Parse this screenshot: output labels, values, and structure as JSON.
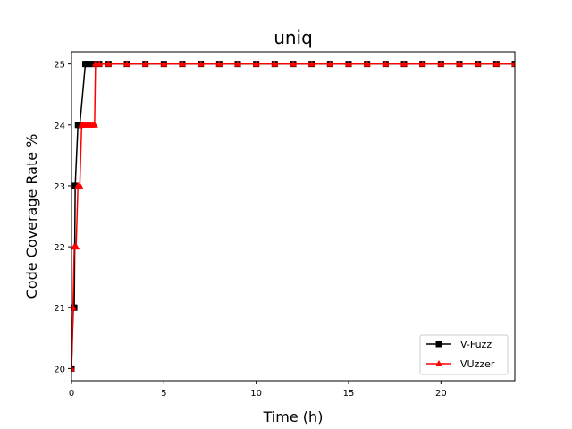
{
  "chart_data": {
    "type": "line",
    "title": "uniq",
    "xlabel": "Time (h)",
    "ylabel": "Code Coverage Rate %",
    "xlim": [
      0,
      24
    ],
    "ylim": [
      19.8,
      25.2
    ],
    "xticks": [
      0,
      5,
      10,
      15,
      20
    ],
    "yticks": [
      20,
      21,
      22,
      23,
      24,
      25
    ],
    "grid": false,
    "legend_position": "lower-right",
    "series": [
      {
        "name": "V-Fuzz",
        "color": "#000000",
        "marker": "square",
        "x": [
          0,
          0.1,
          0.15,
          0.2,
          0.35,
          0.45,
          0.75,
          0.85,
          1.0,
          1.2,
          1.5,
          2,
          3,
          4,
          5,
          6,
          7,
          8,
          9,
          10,
          11,
          12,
          13,
          14,
          15,
          16,
          17,
          18,
          19,
          20,
          21,
          22,
          23,
          24
        ],
        "y": [
          20,
          21,
          21,
          23,
          24,
          24,
          25,
          25,
          25,
          25,
          25,
          25,
          25,
          25,
          25,
          25,
          25,
          25,
          25,
          25,
          25,
          25,
          25,
          25,
          25,
          25,
          25,
          25,
          25,
          25,
          25,
          25,
          25,
          25
        ]
      },
      {
        "name": "VUzzer",
        "color": "#ff0000",
        "marker": "triangle",
        "x": [
          0,
          0.08,
          0.15,
          0.25,
          0.35,
          0.45,
          0.55,
          0.65,
          0.75,
          0.85,
          0.95,
          1.05,
          1.15,
          1.25,
          1.3,
          1.5,
          2,
          3,
          4,
          5,
          6,
          7,
          8,
          9,
          10,
          11,
          12,
          13,
          14,
          15,
          16,
          17,
          18,
          19,
          20,
          21,
          22,
          23,
          24
        ],
        "y": [
          20,
          21,
          22,
          22,
          23,
          23,
          24,
          24,
          24,
          24,
          24,
          24,
          24,
          24,
          25,
          25,
          25,
          25,
          25,
          25,
          25,
          25,
          25,
          25,
          25,
          25,
          25,
          25,
          25,
          25,
          25,
          25,
          25,
          25,
          25,
          25,
          25,
          25,
          25
        ]
      }
    ]
  }
}
